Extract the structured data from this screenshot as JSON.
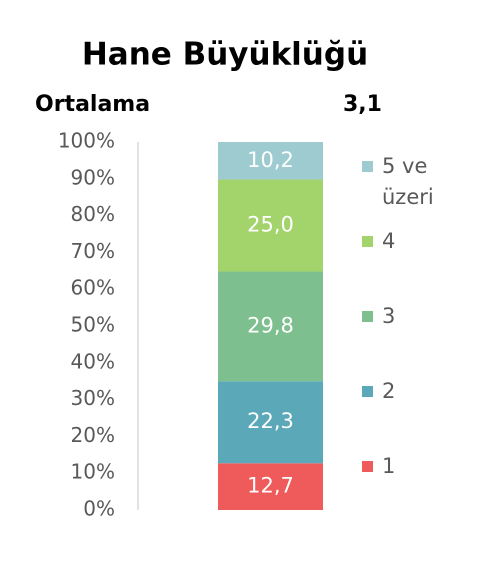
{
  "chart_data": {
    "type": "stacked_bar",
    "title": "Hane Büyüklüğü",
    "annotation": {
      "label": "Ortalama",
      "text": "3,1"
    },
    "categories": [
      null
    ],
    "series": [
      {
        "name": "1",
        "color": "#ef5b5b",
        "values": [
          12.7
        ],
        "value_labels": [
          "12,7"
        ]
      },
      {
        "name": "2",
        "color": "#5ba8b8",
        "values": [
          22.3
        ],
        "value_labels": [
          "22,3"
        ]
      },
      {
        "name": "3",
        "color": "#7dbf8e",
        "values": [
          29.8
        ],
        "value_labels": [
          "29,8"
        ]
      },
      {
        "name": "4",
        "color": "#a3d36b",
        "values": [
          25.0
        ],
        "value_labels": [
          "25,0"
        ]
      },
      {
        "name": "5 ve üzeri",
        "color": "#9ecbd0",
        "values": [
          10.2
        ],
        "value_labels": [
          "10,2"
        ]
      }
    ],
    "ylim": [
      0,
      100
    ],
    "yticks": [
      {
        "value": 0,
        "label": "0%"
      },
      {
        "value": 10,
        "label": "10%"
      },
      {
        "value": 20,
        "label": "20%"
      },
      {
        "value": 30,
        "label": "30%"
      },
      {
        "value": 40,
        "label": "40%"
      },
      {
        "value": 50,
        "label": "50%"
      },
      {
        "value": 60,
        "label": "60%"
      },
      {
        "value": 70,
        "label": "70%"
      },
      {
        "value": 80,
        "label": "80%"
      },
      {
        "value": 90,
        "label": "90%"
      },
      {
        "value": 100,
        "label": "100%"
      }
    ],
    "legend": "right"
  }
}
